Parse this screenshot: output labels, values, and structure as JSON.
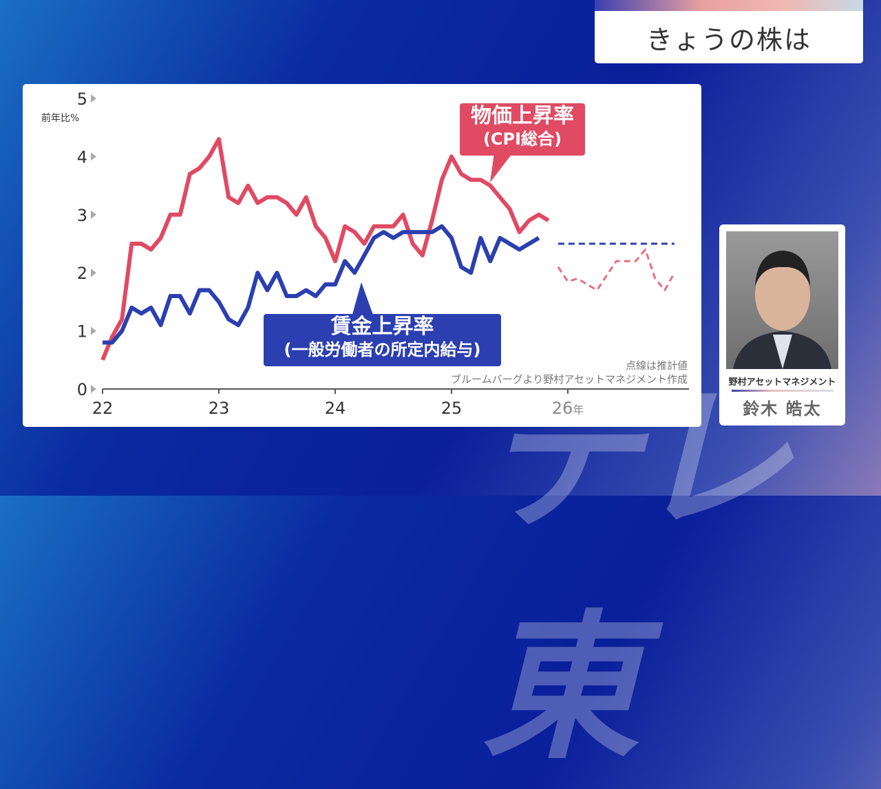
{
  "watermark": "テレ東",
  "header": {
    "title": "きょうの株は"
  },
  "presenter": {
    "organization": "野村アセットマネジメント",
    "name": "鈴木 皓太"
  },
  "colors": {
    "cpi": "#e04a63",
    "wage": "#2b3fb0"
  },
  "chart_data": {
    "type": "line",
    "ylabel": "前年比%",
    "ylim": [
      0,
      5
    ],
    "y_ticks": [
      "0",
      "1",
      "2",
      "3",
      "4",
      "5"
    ],
    "x_ticks": [
      "22",
      "23",
      "24",
      "25",
      "26"
    ],
    "x_unit": "年",
    "xlim": [
      "2022-01",
      "2026-12"
    ],
    "grid": false,
    "series": [
      {
        "name": "物価上昇率",
        "name_sub": "(CPI総合)",
        "color": "#e04a63",
        "style": "solid",
        "start": "2022-01",
        "values": [
          0.5,
          0.9,
          1.2,
          2.5,
          2.5,
          2.4,
          2.6,
          3.0,
          3.0,
          3.7,
          3.8,
          4.0,
          4.3,
          3.3,
          3.2,
          3.5,
          3.2,
          3.3,
          3.3,
          3.2,
          3.0,
          3.3,
          2.8,
          2.6,
          2.2,
          2.8,
          2.7,
          2.5,
          2.8,
          2.8,
          2.8,
          3.0,
          2.5,
          2.3,
          2.9,
          3.6,
          4.0,
          3.7,
          3.6,
          3.6,
          3.5,
          3.3,
          3.1,
          2.7,
          2.9,
          3.0,
          2.9
        ]
      },
      {
        "name": "賃金上昇率",
        "name_sub": "(一般労働者の所定内給与)",
        "color": "#2b3fb0",
        "style": "solid",
        "start": "2022-01",
        "values": [
          0.8,
          0.8,
          1.0,
          1.4,
          1.3,
          1.4,
          1.1,
          1.6,
          1.6,
          1.3,
          1.7,
          1.7,
          1.5,
          1.2,
          1.1,
          1.4,
          2.0,
          1.7,
          2.0,
          1.6,
          1.6,
          1.7,
          1.6,
          1.8,
          1.8,
          2.2,
          2.0,
          2.3,
          2.6,
          2.7,
          2.6,
          2.7,
          2.7,
          2.7,
          2.7,
          2.8,
          2.6,
          2.1,
          2.0,
          2.6,
          2.2,
          2.6,
          2.5,
          2.4,
          2.5,
          2.6
        ]
      },
      {
        "color": "#e04a63",
        "style": "dashed",
        "start": "2025-12",
        "values": [
          2.1,
          1.85,
          1.9,
          1.8,
          1.7,
          1.95,
          2.2,
          2.2,
          2.2,
          2.4,
          1.9,
          1.7,
          2.0
        ]
      },
      {
        "color": "#2b3fb0",
        "style": "dashed",
        "start": "2025-12",
        "values": [
          2.5,
          2.5,
          2.5,
          2.5,
          2.5,
          2.5,
          2.5,
          2.5,
          2.5,
          2.5,
          2.5,
          2.5,
          2.5
        ]
      }
    ],
    "annotations": [
      "点線は推計値",
      "ブルームバーグより野村アセットマネジメント作成"
    ]
  }
}
